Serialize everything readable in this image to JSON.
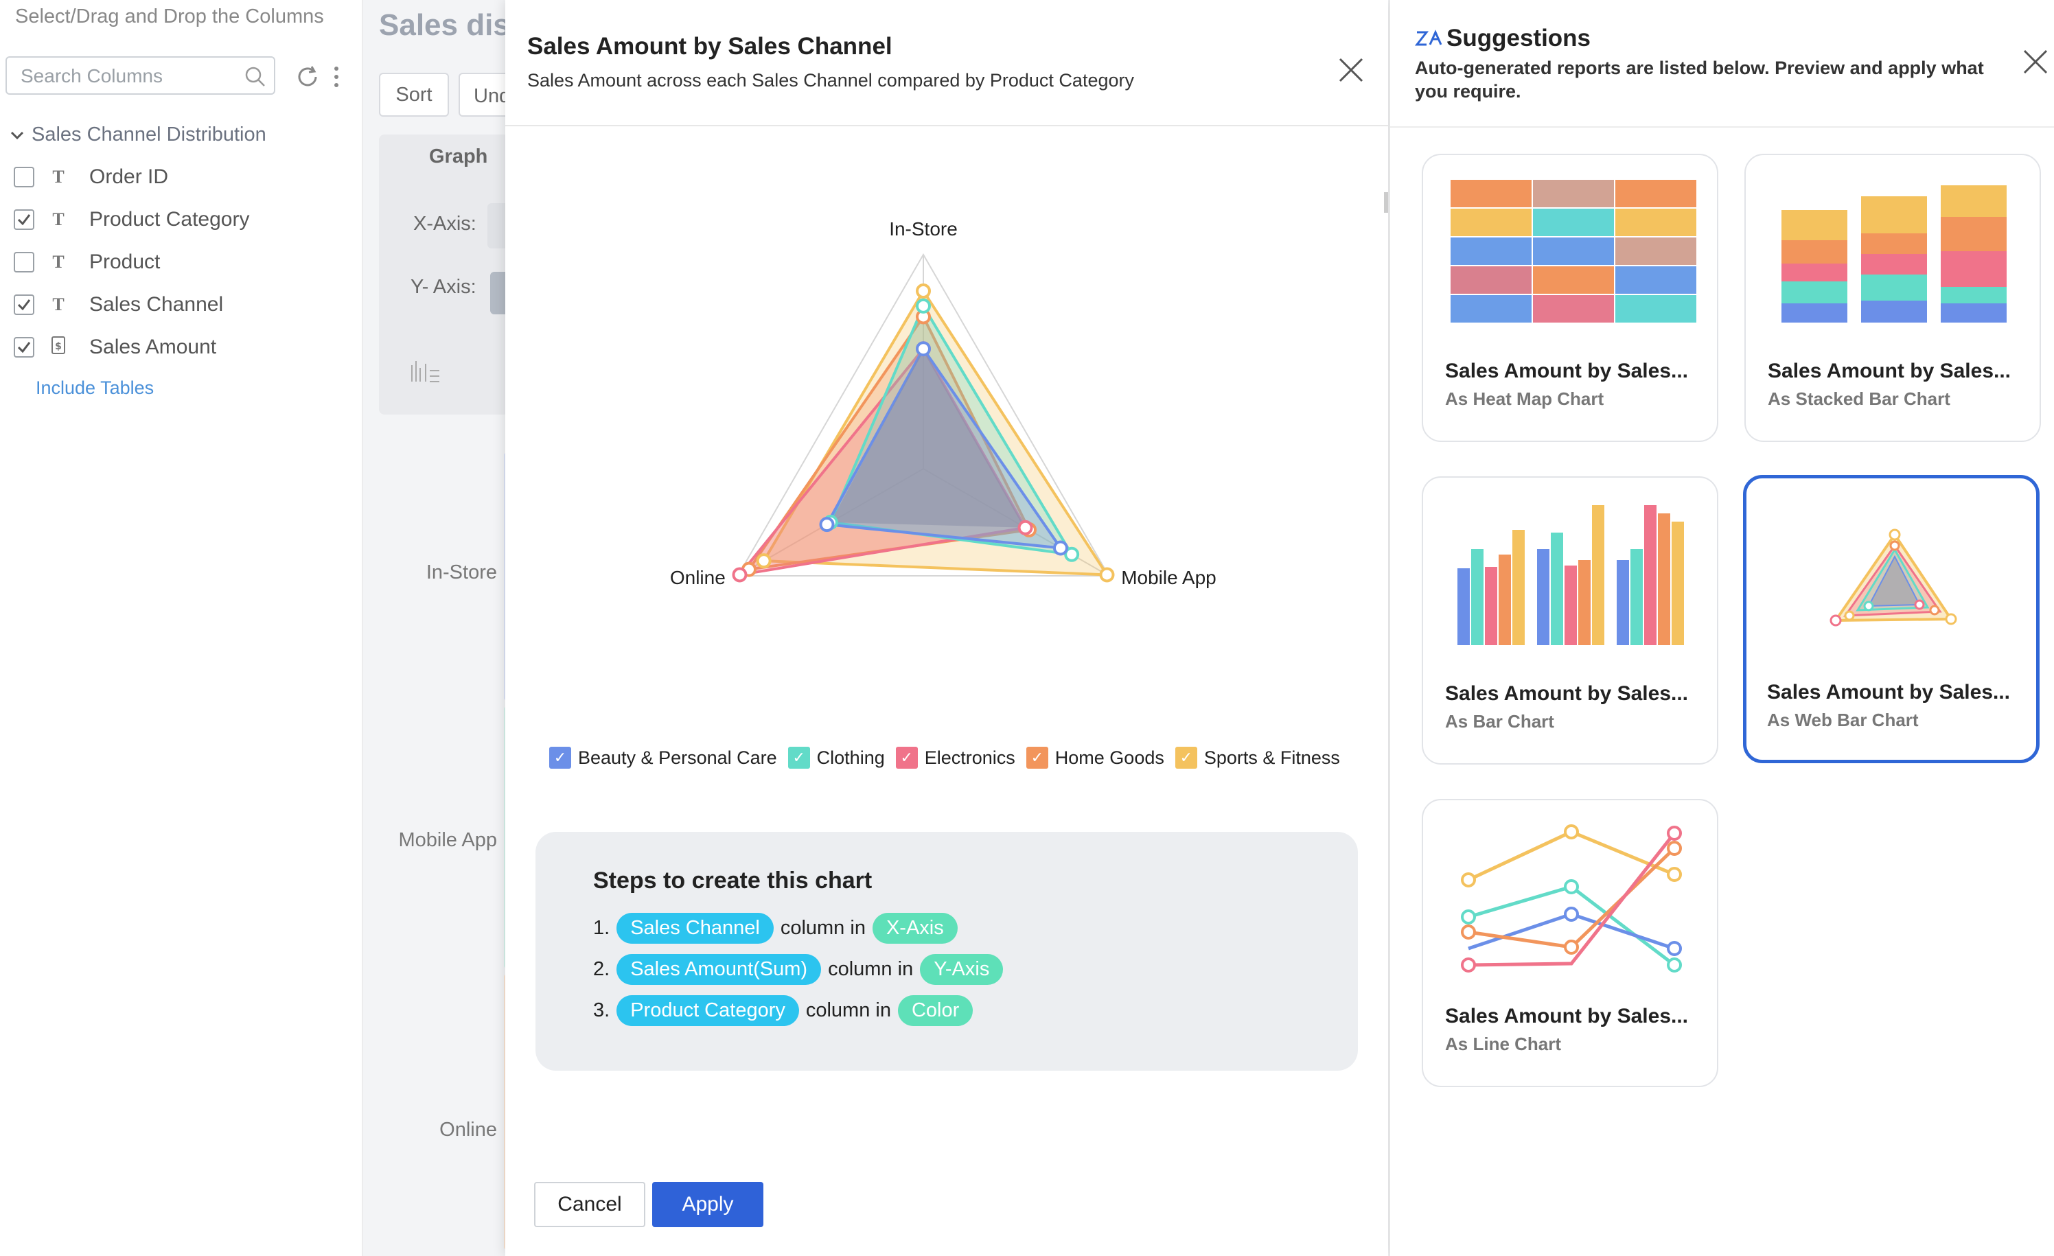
{
  "left_panel": {
    "header": "Select/Drag and Drop the Columns",
    "search_placeholder": "Search Columns",
    "group_label": "Sales Channel Distribution",
    "columns": [
      {
        "label": "Order ID",
        "checked": false,
        "type": "T"
      },
      {
        "label": "Product Category",
        "checked": true,
        "type": "T"
      },
      {
        "label": "Product",
        "checked": false,
        "type": "T"
      },
      {
        "label": "Sales Channel",
        "checked": true,
        "type": "T"
      },
      {
        "label": "Sales Amount",
        "checked": true,
        "type": "currency"
      }
    ],
    "include_tables": "Include Tables"
  },
  "report_area": {
    "title_partial": "Sales dist",
    "sort_label": "Sort",
    "undo_partial": "Und",
    "graph_tab": "Graph",
    "x_axis_label": "X-Axis:",
    "y_axis_label": "Y- Axis:",
    "y_categories": [
      "In-Store",
      "Mobile App",
      "Online"
    ]
  },
  "modal": {
    "title": "Sales Amount by Sales Channel",
    "subtitle": "Sales Amount across each Sales Channel compared by Product Category",
    "steps_heading": "Steps to create this chart",
    "steps": [
      {
        "num": "1.",
        "column": "Sales Channel",
        "mid": "column in",
        "target": "X-Axis"
      },
      {
        "num": "2.",
        "column": "Sales Amount(Sum)",
        "mid": "column in",
        "target": "Y-Axis"
      },
      {
        "num": "3.",
        "column": "Product Category",
        "mid": "column in",
        "target": "Color"
      }
    ],
    "cancel_label": "Cancel",
    "apply_label": "Apply"
  },
  "chart_data": {
    "type": "radar",
    "categories": [
      "In-Store",
      "Mobile App",
      "Online"
    ],
    "series": [
      {
        "name": "Beauty & Personal Care",
        "color": "#6b8fe8",
        "values": [
          0.56,
          0.74,
          0.52
        ]
      },
      {
        "name": "Clothing",
        "color": "#62dbc8",
        "values": [
          0.76,
          0.8,
          0.5
        ]
      },
      {
        "name": "Electronics",
        "color": "#f0738a",
        "values": [
          0.56,
          0.55,
          0.99
        ]
      },
      {
        "name": "Home Goods",
        "color": "#f2955c",
        "values": [
          0.71,
          0.57,
          0.94
        ]
      },
      {
        "name": "Sports & Fitness",
        "color": "#f4c25e",
        "values": [
          0.83,
          0.99,
          0.86
        ]
      }
    ],
    "grid": true
  },
  "suggestions": {
    "title": "Suggestions",
    "description": "Auto-generated reports are listed below. Preview and apply what you require.",
    "cards": [
      {
        "title": "Sales Amount by Sales...",
        "subtitle": "As Heat Map Chart",
        "selected": false
      },
      {
        "title": "Sales Amount by Sales...",
        "subtitle": "As Stacked Bar Chart",
        "selected": false
      },
      {
        "title": "Sales Amount by Sales...",
        "subtitle": "As Bar Chart",
        "selected": false
      },
      {
        "title": "Sales Amount by Sales...",
        "subtitle": "As Web Bar Chart",
        "selected": true
      },
      {
        "title": "Sales Amount by Sales...",
        "subtitle": "As Line Chart",
        "selected": false
      }
    ]
  }
}
